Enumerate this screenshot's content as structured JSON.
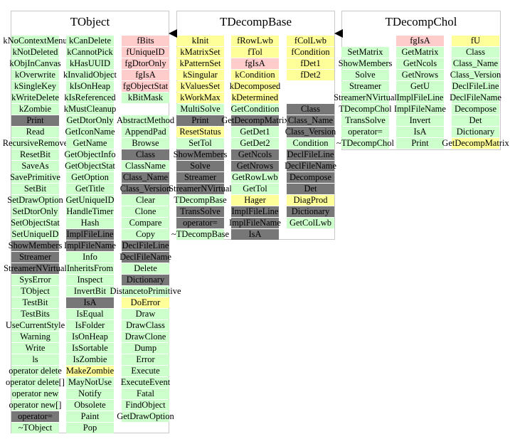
{
  "colors": {
    "green": "#ccffcc",
    "pink": "#ffcccc",
    "yellow": "#ffff99",
    "gray": "#777777"
  },
  "classes": [
    {
      "name": "TObject",
      "columns": [
        [
          [
            "kNoContextMenu",
            "g"
          ],
          [
            "kNotDeleted",
            "g"
          ],
          [
            "kObjInCanvas",
            "g"
          ],
          [
            "kOverwrite",
            "g"
          ],
          [
            "kSingleKey",
            "g"
          ],
          [
            "kWriteDelete",
            "g"
          ],
          [
            "kZombie",
            "g"
          ],
          [
            "Print",
            "d"
          ],
          [
            "Read",
            "g"
          ],
          [
            "RecursiveRemove",
            "g"
          ],
          [
            "ResetBit",
            "g"
          ],
          [
            "SaveAs",
            "g"
          ],
          [
            "SavePrimitive",
            "g"
          ],
          [
            "SetBit",
            "g"
          ],
          [
            "SetDrawOption",
            "g"
          ],
          [
            "SetDtorOnly",
            "g"
          ],
          [
            "SetObjectStat",
            "g"
          ],
          [
            "SetUniqueID",
            "g"
          ],
          [
            "ShowMembers",
            "d"
          ],
          [
            "Streamer",
            "d"
          ],
          [
            "StreamerNVirtual",
            "d"
          ],
          [
            "SysError",
            "g"
          ],
          [
            "TObject",
            "g"
          ],
          [
            "TestBit",
            "g"
          ],
          [
            "TestBits",
            "g"
          ],
          [
            "UseCurrentStyle",
            "g"
          ],
          [
            "Warning",
            "g"
          ],
          [
            "Write",
            "g"
          ],
          [
            "ls",
            "g"
          ],
          [
            "operator delete",
            "g"
          ],
          [
            "operator delete[]",
            "g"
          ],
          [
            "operator new",
            "g"
          ],
          [
            "operator new[]",
            "g"
          ],
          [
            "operator=",
            "d"
          ],
          [
            "~TObject",
            "g"
          ]
        ],
        [
          [
            "kCanDelete",
            "g"
          ],
          [
            "kCannotPick",
            "g"
          ],
          [
            "kHasUUID",
            "g"
          ],
          [
            "kInvalidObject",
            "g"
          ],
          [
            "kIsOnHeap",
            "g"
          ],
          [
            "kIsReferenced",
            "g"
          ],
          [
            "kMustCleanup",
            "g"
          ],
          [
            "GetDtorOnly",
            "g"
          ],
          [
            "GetIconName",
            "g"
          ],
          [
            "GetName",
            "g"
          ],
          [
            "GetObjectInfo",
            "g"
          ],
          [
            "GetObjectStat",
            "g"
          ],
          [
            "GetOption",
            "g"
          ],
          [
            "GetTitle",
            "g"
          ],
          [
            "GetUniqueID",
            "g"
          ],
          [
            "HandleTimer",
            "g"
          ],
          [
            "Hash",
            "g"
          ],
          [
            "ImplFileLine",
            "d"
          ],
          [
            "ImplFileName",
            "d"
          ],
          [
            "Info",
            "g"
          ],
          [
            "InheritsFrom",
            "g"
          ],
          [
            "Inspect",
            "g"
          ],
          [
            "InvertBit",
            "g"
          ],
          [
            "IsA",
            "d"
          ],
          [
            "IsEqual",
            "g"
          ],
          [
            "IsFolder",
            "g"
          ],
          [
            "IsOnHeap",
            "g"
          ],
          [
            "IsSortable",
            "g"
          ],
          [
            "IsZombie",
            "g"
          ],
          [
            "MakeZombie",
            "y"
          ],
          [
            "MayNotUse",
            "g"
          ],
          [
            "Notify",
            "g"
          ],
          [
            "Obsolete",
            "g"
          ],
          [
            "Paint",
            "g"
          ],
          [
            "Pop",
            "g"
          ]
        ],
        [
          [
            "fBits",
            "p"
          ],
          [
            "fUniqueID",
            "p"
          ],
          [
            "fgDtorOnly",
            "p"
          ],
          [
            "fgIsA",
            "p"
          ],
          [
            "fgObjectStat",
            "p"
          ],
          [
            "kBitMask",
            "g"
          ],
          null,
          [
            "AbstractMethod",
            "g"
          ],
          [
            "AppendPad",
            "g"
          ],
          [
            "Browse",
            "g"
          ],
          [
            "Class",
            "d"
          ],
          [
            "ClassName",
            "g"
          ],
          [
            "Class_Name",
            "d"
          ],
          [
            "Class_Version",
            "d"
          ],
          [
            "Clear",
            "g"
          ],
          [
            "Clone",
            "g"
          ],
          [
            "Compare",
            "g"
          ],
          [
            "Copy",
            "g"
          ],
          [
            "DeclFileLine",
            "d"
          ],
          [
            "DeclFileName",
            "d"
          ],
          [
            "Delete",
            "g"
          ],
          [
            "Dictionary",
            "d"
          ],
          [
            "DistancetoPrimitive",
            "g"
          ],
          [
            "DoError",
            "y"
          ],
          [
            "Draw",
            "g"
          ],
          [
            "DrawClass",
            "g"
          ],
          [
            "DrawClone",
            "g"
          ],
          [
            "Dump",
            "g"
          ],
          [
            "Error",
            "g"
          ],
          [
            "Execute",
            "g"
          ],
          [
            "ExecuteEvent",
            "g"
          ],
          [
            "Fatal",
            "g"
          ],
          [
            "FindObject",
            "g"
          ],
          [
            "GetDrawOption",
            "g"
          ]
        ]
      ]
    },
    {
      "name": "TDecompBase",
      "columns": [
        [
          [
            "kInit",
            "y"
          ],
          [
            "kMatrixSet",
            "y"
          ],
          [
            "kPatternSet",
            "y"
          ],
          [
            "kSingular",
            "y"
          ],
          [
            "kValuesSet",
            "y"
          ],
          [
            "kWorkMax",
            "y"
          ],
          [
            "MultiSolve",
            "g"
          ],
          [
            "Print",
            "d"
          ],
          [
            "ResetStatus",
            "y"
          ],
          [
            "SetTol",
            "g"
          ],
          [
            "ShowMembers",
            "d"
          ],
          [
            "Solve",
            "d"
          ],
          [
            "Streamer",
            "d"
          ],
          [
            "StreamerNVirtual",
            "d"
          ],
          [
            "TDecompBase",
            "g"
          ],
          [
            "TransSolve",
            "d"
          ],
          [
            "operator=",
            "d"
          ],
          [
            "~TDecompBase",
            "g"
          ]
        ],
        [
          [
            "fRowLwb",
            "y"
          ],
          [
            "fTol",
            "y"
          ],
          [
            "fgIsA",
            "p"
          ],
          [
            "kCondition",
            "y"
          ],
          [
            "kDecomposed",
            "y"
          ],
          [
            "kDetermined",
            "y"
          ],
          [
            "GetCondition",
            "g"
          ],
          [
            "GetDecompMatrix",
            "d"
          ],
          [
            "GetDet1",
            "g"
          ],
          [
            "GetDet2",
            "g"
          ],
          [
            "GetNcols",
            "d"
          ],
          [
            "GetNrows",
            "d"
          ],
          [
            "GetRowLwb",
            "g"
          ],
          [
            "GetTol",
            "g"
          ],
          [
            "Hager",
            "y"
          ],
          [
            "ImplFileLine",
            "d"
          ],
          [
            "ImplFileName",
            "d"
          ],
          [
            "IsA",
            "d"
          ]
        ],
        [
          [
            "fColLwb",
            "y"
          ],
          [
            "fCondition",
            "y"
          ],
          [
            "fDet1",
            "y"
          ],
          [
            "fDet2",
            "y"
          ],
          null,
          null,
          [
            "Class",
            "d"
          ],
          [
            "Class_Name",
            "d"
          ],
          [
            "Class_Version",
            "d"
          ],
          [
            "Condition",
            "g"
          ],
          [
            "DeclFileLine",
            "d"
          ],
          [
            "DeclFileName",
            "d"
          ],
          [
            "Decompose",
            "d"
          ],
          [
            "Det",
            "d"
          ],
          [
            "DiagProd",
            "y"
          ],
          [
            "Dictionary",
            "d"
          ],
          [
            "GetColLwb",
            "g"
          ]
        ]
      ]
    },
    {
      "name": "TDecompChol",
      "columns": [
        [
          null,
          [
            "SetMatrix",
            "g"
          ],
          [
            "ShowMembers",
            "g"
          ],
          [
            "Solve",
            "g"
          ],
          [
            "Streamer",
            "g"
          ],
          [
            "StreamerNVirtual",
            "g"
          ],
          [
            "TDecompChol",
            "g"
          ],
          [
            "TransSolve",
            "g"
          ],
          [
            "operator=",
            "g"
          ],
          [
            "~TDecompChol",
            "g"
          ]
        ],
        [
          [
            "fgIsA",
            "p"
          ],
          [
            "GetMatrix",
            "g"
          ],
          [
            "GetNcols",
            "g"
          ],
          [
            "GetNrows",
            "g"
          ],
          [
            "GetU",
            "g"
          ],
          [
            "ImplFileLine",
            "g"
          ],
          [
            "ImplFileName",
            "g"
          ],
          [
            "Invert",
            "g"
          ],
          [
            "IsA",
            "g"
          ],
          [
            "Print",
            "g"
          ]
        ],
        [
          [
            "fU",
            "y"
          ],
          [
            "Class",
            "g"
          ],
          [
            "Class_Name",
            "g"
          ],
          [
            "Class_Version",
            "g"
          ],
          [
            "DeclFileLine",
            "g"
          ],
          [
            "DeclFileName",
            "g"
          ],
          [
            "Decompose",
            "g"
          ],
          [
            "Det",
            "g"
          ],
          [
            "Dictionary",
            "g"
          ],
          [
            "GetDecompMatrix",
            "y"
          ]
        ]
      ]
    }
  ]
}
